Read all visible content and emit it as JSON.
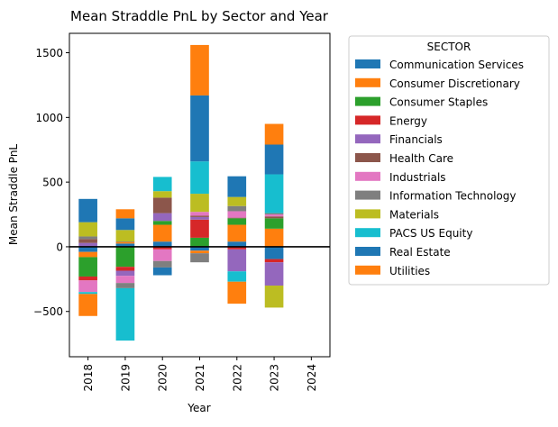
{
  "chart_data": {
    "type": "bar",
    "stacked": true,
    "title": "Mean Straddle PnL by Sector and Year",
    "xlabel": "Year",
    "ylabel": "Mean Straddle PnL",
    "categories": [
      "2018",
      "2019",
      "2020",
      "2021",
      "2022",
      "2023",
      "2024"
    ],
    "ylim": [
      -850,
      1650
    ],
    "yticks": [
      -500,
      0,
      500,
      1000,
      1500
    ],
    "ytick_labels": [
      "−500",
      "0",
      "500",
      "1000",
      "1500"
    ],
    "grid": false,
    "zero_line": true,
    "legend": {
      "title": "SECTOR",
      "placement": "outside-right"
    },
    "series": [
      {
        "name": "Communication Services",
        "color": "#1f77b4",
        "values": [
          -40,
          25,
          40,
          -30,
          40,
          -95,
          0
        ]
      },
      {
        "name": "Consumer Discretionary",
        "color": "#ff7f0e",
        "values": [
          -40,
          10,
          130,
          -20,
          130,
          140,
          0
        ]
      },
      {
        "name": "Consumer Staples",
        "color": "#2ca02c",
        "values": [
          -150,
          -155,
          30,
          70,
          50,
          80,
          0
        ]
      },
      {
        "name": "Energy",
        "color": "#d62728",
        "values": [
          -30,
          -30,
          -20,
          140,
          -20,
          -25,
          0
        ]
      },
      {
        "name": "Financials",
        "color": "#9467bd",
        "values": [
          30,
          -40,
          60,
          20,
          -170,
          -180,
          0
        ]
      },
      {
        "name": "Health Care",
        "color": "#8c564b",
        "values": [
          30,
          5,
          120,
          10,
          5,
          15,
          0
        ]
      },
      {
        "name": "Industrials",
        "color": "#e377c2",
        "values": [
          -90,
          -55,
          -90,
          30,
          50,
          15,
          0
        ]
      },
      {
        "name": "Information Technology",
        "color": "#7f7f7f",
        "values": [
          20,
          -40,
          -50,
          -70,
          40,
          10,
          0
        ]
      },
      {
        "name": "Materials",
        "color": "#bcbd22",
        "values": [
          110,
          90,
          50,
          140,
          70,
          -170,
          0
        ]
      },
      {
        "name": "PACS US Equity",
        "color": "#17becf",
        "values": [
          -15,
          -405,
          110,
          250,
          -80,
          300,
          0
        ]
      },
      {
        "name": "Real Estate",
        "color": "#1f77b4",
        "values": [
          180,
          90,
          -60,
          510,
          160,
          230,
          0
        ]
      },
      {
        "name": "Utilities",
        "color": "#ff7f0e",
        "values": [
          -170,
          70,
          0,
          390,
          -170,
          160,
          0
        ]
      }
    ]
  }
}
